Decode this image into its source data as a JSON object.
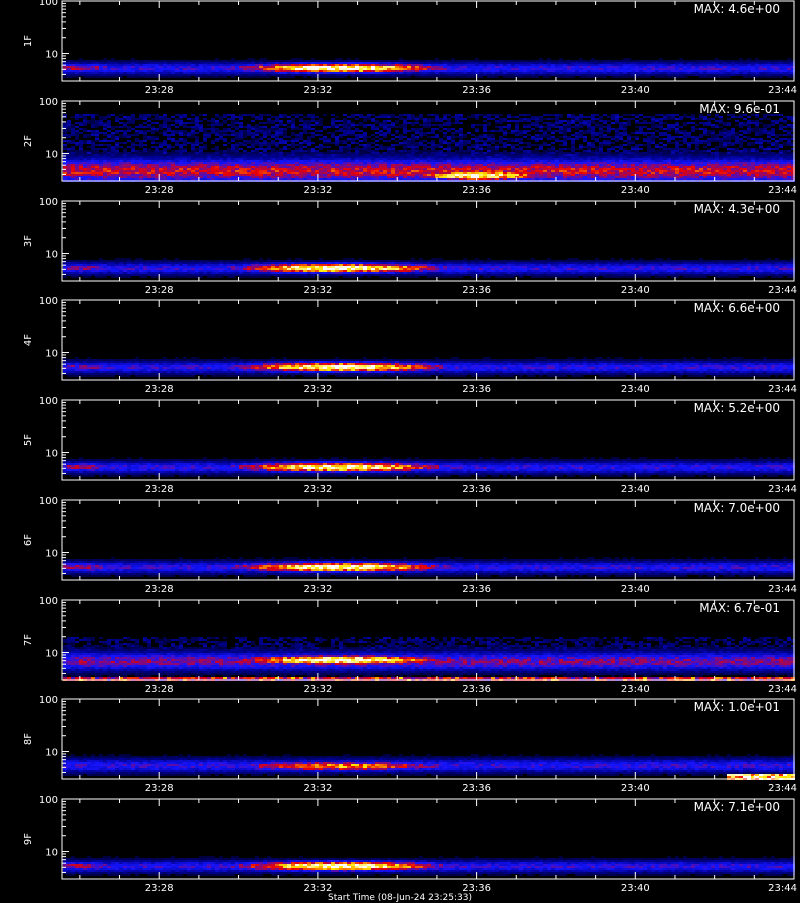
{
  "chart_data": [
    {
      "type": "heatmap",
      "ylabel": "1F",
      "annotation": "MAX: 4.6e+00",
      "x_ticks": [
        "23:28",
        "23:32",
        "23:36",
        "23:40",
        "23:44"
      ],
      "y_ticks": [
        "10",
        "100"
      ],
      "ylim": [
        3,
        100
      ],
      "y_scale": "log",
      "xlim": [
        "23:25",
        "23:44"
      ],
      "features": [
        {
          "kind": "band",
          "y_low": 4.5,
          "y_high": 6.5,
          "t_start": "23:25",
          "t_end": "23:44",
          "intensity": 0.35
        },
        {
          "kind": "blob",
          "t_center": "23:32.5",
          "t_halfwidth_min": 2.5,
          "y_center": 5.5,
          "peak": 1.0
        },
        {
          "kind": "blob",
          "t_center": "23:26",
          "t_halfwidth_min": 1.0,
          "y_center": 5.5,
          "peak": 0.55
        }
      ]
    },
    {
      "type": "heatmap",
      "ylabel": "2F",
      "annotation": "MAX: 9.6e-01",
      "x_ticks": [
        "23:28",
        "23:32",
        "23:36",
        "23:40",
        "23:44"
      ],
      "y_ticks": [
        "10",
        "100"
      ],
      "ylim": [
        3,
        100
      ],
      "y_scale": "log",
      "xlim": [
        "23:25",
        "23:44"
      ],
      "features": [
        {
          "kind": "band",
          "y_low": 3,
          "y_high": 8,
          "t_start": "23:25",
          "t_end": "23:44",
          "intensity": 0.55
        },
        {
          "kind": "blob",
          "t_center": "23:36",
          "t_halfwidth_min": 1.5,
          "y_center": 4,
          "peak": 1.0
        },
        {
          "kind": "noise",
          "y_low": 8,
          "y_high": 60,
          "intensity": 0.22
        }
      ]
    },
    {
      "type": "heatmap",
      "ylabel": "3F",
      "annotation": "MAX: 4.3e+00",
      "x_ticks": [
        "23:28",
        "23:32",
        "23:36",
        "23:40",
        "23:44"
      ],
      "y_ticks": [
        "10",
        "100"
      ],
      "ylim": [
        3,
        100
      ],
      "y_scale": "log",
      "xlim": [
        "23:25",
        "23:44"
      ],
      "features": [
        {
          "kind": "band",
          "y_low": 4.5,
          "y_high": 6.5,
          "t_start": "23:25",
          "t_end": "23:44",
          "intensity": 0.35
        },
        {
          "kind": "blob",
          "t_center": "23:32.5",
          "t_halfwidth_min": 2.5,
          "y_center": 5.5,
          "peak": 1.0
        },
        {
          "kind": "blob",
          "t_center": "23:26",
          "t_halfwidth_min": 1.0,
          "y_center": 5.5,
          "peak": 0.5
        }
      ]
    },
    {
      "type": "heatmap",
      "ylabel": "4F",
      "annotation": "MAX: 6.6e+00",
      "x_ticks": [
        "23:28",
        "23:32",
        "23:36",
        "23:40",
        "23:44"
      ],
      "y_ticks": [
        "10",
        "100"
      ],
      "ylim": [
        3,
        100
      ],
      "y_scale": "log",
      "xlim": [
        "23:25",
        "23:44"
      ],
      "features": [
        {
          "kind": "band",
          "y_low": 4.5,
          "y_high": 6.5,
          "t_start": "23:25",
          "t_end": "23:44",
          "intensity": 0.35
        },
        {
          "kind": "blob",
          "t_center": "23:32.5",
          "t_halfwidth_min": 2.5,
          "y_center": 5.5,
          "peak": 1.0
        },
        {
          "kind": "blob",
          "t_center": "23:26",
          "t_halfwidth_min": 1.0,
          "y_center": 5.5,
          "peak": 0.5
        }
      ]
    },
    {
      "type": "heatmap",
      "ylabel": "5F",
      "annotation": "MAX: 5.2e+00",
      "x_ticks": [
        "23:28",
        "23:32",
        "23:36",
        "23:40",
        "23:44"
      ],
      "y_ticks": [
        "10",
        "100"
      ],
      "ylim": [
        3,
        100
      ],
      "y_scale": "log",
      "xlim": [
        "23:25",
        "23:44"
      ],
      "features": [
        {
          "kind": "band",
          "y_low": 4.5,
          "y_high": 6.5,
          "t_start": "23:25",
          "t_end": "23:44",
          "intensity": 0.35
        },
        {
          "kind": "blob",
          "t_center": "23:32.5",
          "t_halfwidth_min": 2.5,
          "y_center": 5.5,
          "peak": 1.0
        },
        {
          "kind": "blob",
          "t_center": "23:26",
          "t_halfwidth_min": 1.0,
          "y_center": 5.5,
          "peak": 0.55
        }
      ]
    },
    {
      "type": "heatmap",
      "ylabel": "6F",
      "annotation": "MAX: 7.0e+00",
      "x_ticks": [
        "23:28",
        "23:32",
        "23:36",
        "23:40",
        "23:44"
      ],
      "y_ticks": [
        "10",
        "100"
      ],
      "ylim": [
        3,
        100
      ],
      "y_scale": "log",
      "xlim": [
        "23:25",
        "23:44"
      ],
      "features": [
        {
          "kind": "band",
          "y_low": 4.5,
          "y_high": 6.5,
          "t_start": "23:25",
          "t_end": "23:44",
          "intensity": 0.35
        },
        {
          "kind": "blob",
          "t_center": "23:32.5",
          "t_halfwidth_min": 2.5,
          "y_center": 5.5,
          "peak": 1.0
        },
        {
          "kind": "blob",
          "t_center": "23:26",
          "t_halfwidth_min": 1.0,
          "y_center": 5.5,
          "peak": 0.55
        }
      ]
    },
    {
      "type": "heatmap",
      "ylabel": "7F",
      "annotation": "MAX: 6.7e-01",
      "x_ticks": [
        "23:28",
        "23:32",
        "23:36",
        "23:40",
        "23:44"
      ],
      "y_ticks": [
        "10",
        "100"
      ],
      "ylim": [
        3,
        100
      ],
      "y_scale": "log",
      "xlim": [
        "23:25",
        "23:44"
      ],
      "features": [
        {
          "kind": "band",
          "y_low": 5,
          "y_high": 10,
          "t_start": "23:25",
          "t_end": "23:44",
          "intensity": 0.45
        },
        {
          "kind": "blob",
          "t_center": "23:32.5",
          "t_halfwidth_min": 2.5,
          "y_center": 7.5,
          "peak": 1.0
        },
        {
          "kind": "floor",
          "y_low": 3,
          "y_high": 3.6,
          "intensity": 0.75
        },
        {
          "kind": "noise",
          "y_low": 10,
          "y_high": 20,
          "intensity": 0.2
        }
      ]
    },
    {
      "type": "heatmap",
      "ylabel": "8F",
      "annotation": "MAX: 1.0e+01",
      "x_ticks": [
        "23:28",
        "23:32",
        "23:36",
        "23:40",
        "23:44"
      ],
      "y_ticks": [
        "10",
        "100"
      ],
      "ylim": [
        3,
        100
      ],
      "y_scale": "log",
      "xlim": [
        "23:25",
        "23:44"
      ],
      "features": [
        {
          "kind": "band",
          "y_low": 4.5,
          "y_high": 7.0,
          "t_start": "23:25",
          "t_end": "23:44",
          "intensity": 0.35
        },
        {
          "kind": "blob",
          "t_center": "23:32.5",
          "t_halfwidth_min": 2.8,
          "y_center": 5.5,
          "peak": 0.75
        },
        {
          "kind": "corner",
          "t_start": "23:42.3",
          "t_end": "23:44",
          "y_low": 3,
          "y_high": 3.8,
          "peak": 1.0
        }
      ]
    },
    {
      "type": "heatmap",
      "ylabel": "9F",
      "annotation": "MAX: 7.1e+00",
      "x_ticks": [
        "23:28",
        "23:32",
        "23:36",
        "23:40",
        "23:44"
      ],
      "y_ticks": [
        "10",
        "100"
      ],
      "ylim": [
        3,
        100
      ],
      "y_scale": "log",
      "xlim": [
        "23:25",
        "23:44"
      ],
      "features": [
        {
          "kind": "band",
          "y_low": 4.5,
          "y_high": 6.5,
          "t_start": "23:25",
          "t_end": "23:44",
          "intensity": 0.35
        },
        {
          "kind": "blob",
          "t_center": "23:32.5",
          "t_halfwidth_min": 2.5,
          "y_center": 5.5,
          "peak": 1.0
        },
        {
          "kind": "blob",
          "t_center": "23:26",
          "t_halfwidth_min": 1.0,
          "y_center": 5.5,
          "peak": 0.55
        }
      ]
    }
  ],
  "x_axis_label": "Start Time (08-Jun-24 23:25:33)",
  "colors": {
    "background": "#000000",
    "axes": "#ffffff",
    "colormap": [
      "#000000",
      "#0000ff",
      "#ff0000",
      "#ffff00",
      "#ffffff"
    ]
  }
}
